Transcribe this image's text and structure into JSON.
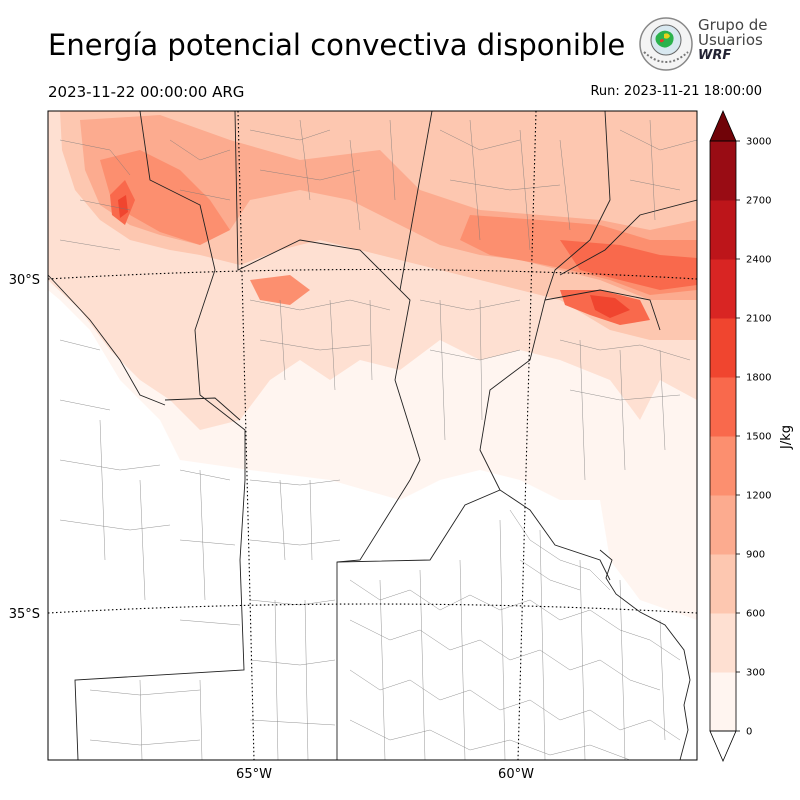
{
  "title": "Energía potencial convectiva disponible",
  "valid_time": "2023-11-22 00:00:00 ARG",
  "run_time": "Run: 2023-11-21 18:00:00",
  "logo": {
    "line1": "Grupo de",
    "line2": "Usuarios",
    "line3": "WRF",
    "icon": "globe-emblem-icon"
  },
  "map": {
    "lat_labels": [
      "30°S",
      "35°S"
    ],
    "lon_labels": [
      "65°W",
      "60°W"
    ]
  },
  "colorbar": {
    "unit": "J/kg",
    "ticks": [
      "0",
      "300",
      "600",
      "900",
      "1200",
      "1500",
      "1800",
      "2100",
      "2400",
      "2700",
      "3000"
    ],
    "colors": [
      "#fff5f0",
      "#fee0d2",
      "#fdc7b0",
      "#fcab8f",
      "#fc8f6f",
      "#f9694c",
      "#f0452f",
      "#d92523",
      "#bd151a",
      "#990c14",
      "#700308"
    ]
  }
}
